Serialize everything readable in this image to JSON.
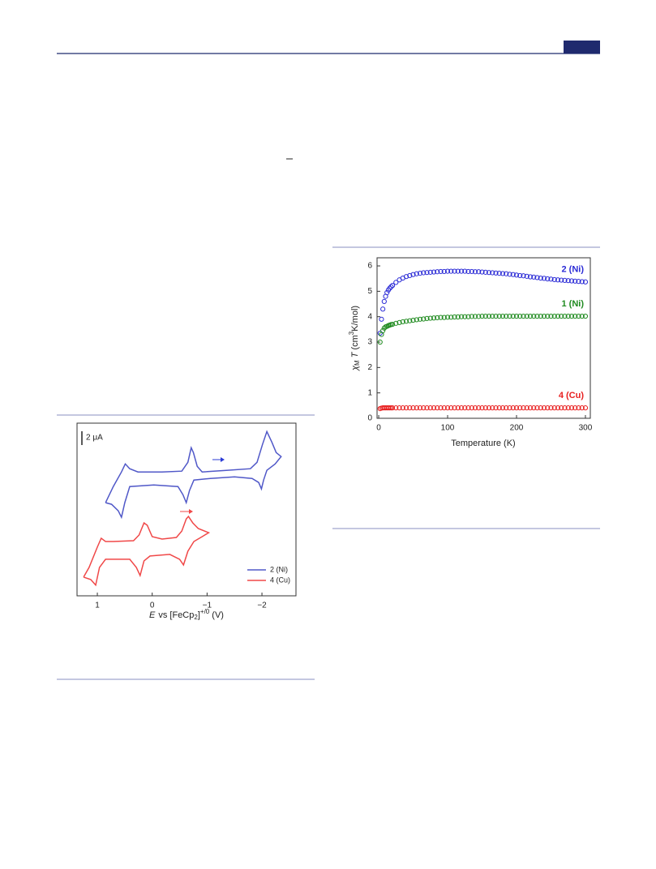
{
  "chart_data": [
    {
      "type": "line",
      "x_label": [
        "E",
        "vs [FeCp",
        "2",
        "]",
        "+/0",
        " (V)"
      ],
      "scale_bar": "2 μA",
      "xlim": [
        1.37,
        -2.62
      ],
      "ylim": [
        -13.4,
        13.3
      ],
      "xticks": [
        1,
        0,
        {
          "value": -1,
          "label": "−1"
        },
        {
          "value": -2,
          "label": "−2"
        }
      ],
      "series": [
        {
          "name": "2 (Ni)",
          "color": "#5058c8",
          "x": [
            0.85,
            0.71,
            0.56,
            0.49,
            0.41,
            0.26,
            -0.18,
            -0.54,
            -0.65,
            -0.71,
            -0.75,
            -0.82,
            -0.91,
            -1.35,
            -1.79,
            -1.91,
            -2.01,
            -2.09,
            -2.18,
            -2.26,
            -2.35,
            -2.24,
            -2.09,
            -2.03,
            -1.99,
            -1.94,
            -1.82,
            -1.5,
            -1.06,
            -0.76,
            -0.68,
            -0.62,
            -0.56,
            -0.47,
            -0.03,
            0.41,
            0.5,
            0.56,
            0.62,
            0.74,
            0.85
          ],
          "values": [
            1,
            3.5,
            5.75,
            7,
            6.25,
            5.75,
            5.75,
            5.88,
            7.25,
            9.5,
            8.75,
            6.63,
            5.75,
            6,
            6.25,
            7.25,
            10,
            12,
            10.38,
            8.75,
            8.13,
            7,
            6,
            4.5,
            3.13,
            4.13,
            4.75,
            5,
            4.75,
            4.5,
            2.88,
            1,
            2.25,
            3.5,
            3.75,
            3.5,
            1,
            -1.25,
            -0.25,
            0.75,
            1
          ]
        },
        {
          "name": "4 (Cu)",
          "color": "#f04848",
          "x": [
            1.25,
            1.15,
            1.0,
            0.93,
            0.85,
            0.71,
            0.34,
            0.24,
            0.15,
            0.09,
            0,
            -0.18,
            -0.44,
            -0.54,
            -0.62,
            -0.66,
            -0.74,
            -0.84,
            -1.03,
            -0.91,
            -0.76,
            -0.65,
            -0.57,
            -0.5,
            -0.32,
            0.04,
            0.15,
            0.22,
            0.29,
            0.41,
            0.85,
            0.96,
            1.03,
            1.12,
            1.25
          ],
          "values": [
            -10.5,
            -9,
            -5.88,
            -4.5,
            -5,
            -5,
            -4.88,
            -4,
            -2.13,
            -2.5,
            -4.25,
            -4.63,
            -4.38,
            -3.38,
            -1.5,
            -1.13,
            -2.13,
            -3,
            -3.63,
            -4.25,
            -5,
            -6.5,
            -8.63,
            -7.75,
            -7,
            -7.25,
            -8,
            -10.25,
            -9,
            -7.75,
            -7.75,
            -9,
            -11.75,
            -10.88,
            -10.5
          ]
        }
      ]
    },
    {
      "type": "scatter",
      "x_label": "Temperature (K)",
      "y_label": [
        "χ",
        "M",
        " T",
        " (cm",
        "3",
        "K/mol)"
      ],
      "xlim": [
        -2.4,
        307.1
      ],
      "ylim": [
        0,
        6.32
      ],
      "xticks": [
        0,
        100,
        200,
        300
      ],
      "yticks": [
        0,
        1,
        2,
        3,
        4,
        5,
        6
      ],
      "x": [
        2,
        4,
        6,
        8,
        10,
        12,
        14,
        16,
        18,
        20,
        25,
        30,
        35,
        40,
        45,
        50,
        55,
        60,
        65,
        70,
        75,
        80,
        85,
        90,
        95,
        100,
        105,
        110,
        115,
        120,
        125,
        130,
        135,
        140,
        145,
        150,
        155,
        160,
        165,
        170,
        175,
        180,
        185,
        190,
        195,
        200,
        205,
        210,
        215,
        220,
        225,
        230,
        235,
        240,
        245,
        250,
        255,
        260,
        265,
        270,
        275,
        280,
        285,
        290,
        295,
        300
      ],
      "series": [
        {
          "name": "2 (Ni)",
          "color": "#2b2bd6",
          "values": [
            3.35,
            3.9,
            4.3,
            4.6,
            4.8,
            4.95,
            5.05,
            5.12,
            5.18,
            5.23,
            5.35,
            5.45,
            5.52,
            5.58,
            5.62,
            5.66,
            5.69,
            5.71,
            5.73,
            5.74,
            5.75,
            5.76,
            5.77,
            5.78,
            5.78,
            5.79,
            5.79,
            5.79,
            5.79,
            5.79,
            5.79,
            5.78,
            5.78,
            5.77,
            5.77,
            5.76,
            5.75,
            5.74,
            5.73,
            5.72,
            5.71,
            5.7,
            5.69,
            5.67,
            5.66,
            5.64,
            5.62,
            5.61,
            5.59,
            5.57,
            5.56,
            5.54,
            5.52,
            5.51,
            5.49,
            5.48,
            5.46,
            5.45,
            5.44,
            5.43,
            5.42,
            5.41,
            5.4,
            5.39,
            5.38,
            5.37
          ]
        },
        {
          "name": "1 (Ni)",
          "color": "#1f8a1f",
          "values": [
            3.0,
            3.3,
            3.45,
            3.55,
            3.6,
            3.62,
            3.65,
            3.67,
            3.69,
            3.7,
            3.74,
            3.77,
            3.8,
            3.82,
            3.84,
            3.86,
            3.88,
            3.9,
            3.91,
            3.93,
            3.94,
            3.95,
            3.96,
            3.97,
            3.97,
            3.98,
            3.98,
            3.99,
            3.99,
            4.0,
            4.0,
            4.0,
            4.01,
            4.01,
            4.01,
            4.02,
            4.02,
            4.02,
            4.02,
            4.02,
            4.02,
            4.02,
            4.02,
            4.02,
            4.02,
            4.02,
            4.02,
            4.02,
            4.02,
            4.02,
            4.02,
            4.02,
            4.02,
            4.02,
            4.02,
            4.02,
            4.02,
            4.02,
            4.02,
            4.02,
            4.02,
            4.02,
            4.02,
            4.02,
            4.02,
            4.02
          ]
        },
        {
          "name": "4 (Cu)",
          "color": "#e82020",
          "values": [
            0.38,
            0.4,
            0.41,
            0.41,
            0.41,
            0.41,
            0.41,
            0.41,
            0.41,
            0.41,
            0.41,
            0.41,
            0.41,
            0.41,
            0.41,
            0.41,
            0.41,
            0.41,
            0.41,
            0.41,
            0.41,
            0.41,
            0.41,
            0.41,
            0.41,
            0.41,
            0.41,
            0.41,
            0.41,
            0.41,
            0.41,
            0.41,
            0.41,
            0.41,
            0.41,
            0.41,
            0.41,
            0.41,
            0.41,
            0.41,
            0.41,
            0.41,
            0.41,
            0.41,
            0.41,
            0.41,
            0.41,
            0.41,
            0.41,
            0.41,
            0.41,
            0.41,
            0.41,
            0.41,
            0.41,
            0.41,
            0.41,
            0.41,
            0.41,
            0.41,
            0.41,
            0.41,
            0.41,
            0.41,
            0.41,
            0.41
          ]
        }
      ]
    }
  ]
}
